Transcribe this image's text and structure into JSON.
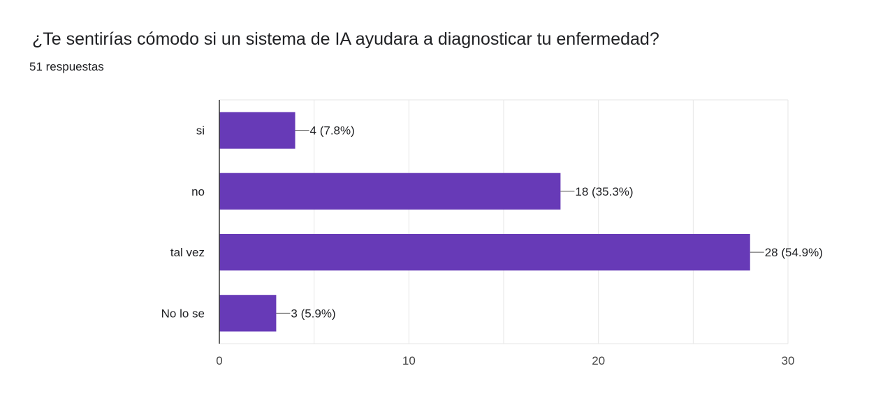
{
  "header": {
    "question": "¿Te sentirías cómodo si un sistema de IA ayudara a diagnosticar tu enfermedad?",
    "responses": "51 respuestas"
  },
  "colors": {
    "bar": "#673AB7",
    "grid": "#e6e6e6",
    "axis": "#333333",
    "text": "#202124",
    "tick_text": "#444444"
  },
  "chart_data": {
    "type": "bar",
    "orientation": "horizontal",
    "title": "¿Te sentirías cómodo si un sistema de IA ayudara a diagnosticar tu enfermedad?",
    "subtitle": "51 respuestas",
    "categories": [
      "si",
      "no",
      "tal vez",
      "No lo se"
    ],
    "values": [
      4,
      18,
      28,
      3
    ],
    "data_labels": [
      "4 (7.8%)",
      "18 (35.3%)",
      "28 (54.9%)",
      "3 (5.9%)"
    ],
    "xlim": [
      0,
      30
    ],
    "x_ticks": [
      0,
      10,
      20,
      30
    ],
    "minor_grid_step": 5,
    "xlabel": "",
    "ylabel": "",
    "grid": true
  }
}
